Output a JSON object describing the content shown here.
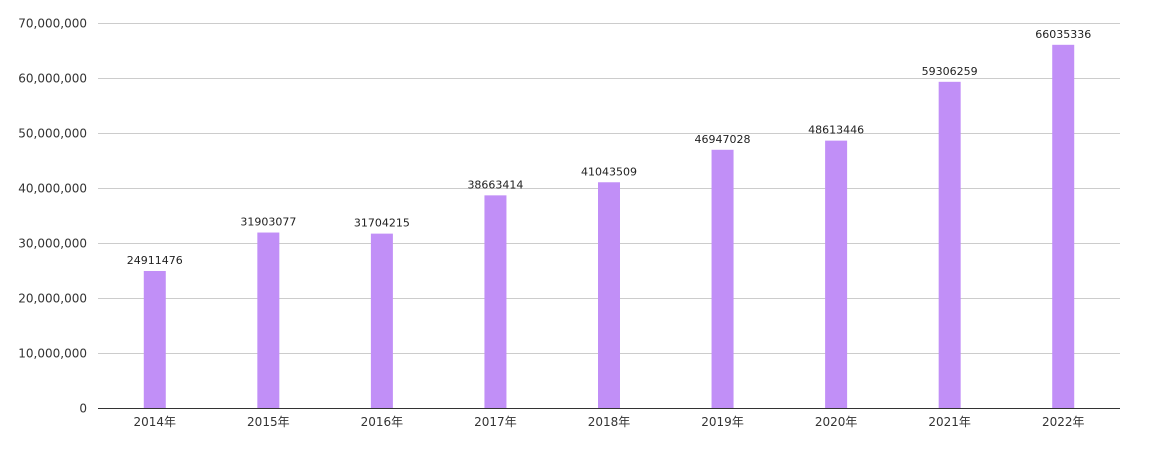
{
  "chart_data": {
    "type": "bar",
    "title": "",
    "xlabel": "",
    "ylabel": "",
    "categories": [
      "2014年",
      "2015年",
      "2016年",
      "2017年",
      "2018年",
      "2019年",
      "2020年",
      "2021年",
      "2022年"
    ],
    "values": [
      24911476,
      31903077,
      31704215,
      38663414,
      41043509,
      46947028,
      48613446,
      59306259,
      66035336
    ],
    "data_labels": [
      "24911476",
      "31903077",
      "31704215",
      "38663414",
      "41043509",
      "46947028",
      "48613446",
      "59306259",
      "66035336"
    ],
    "ylim": [
      0,
      70000000
    ],
    "yticks": [
      0,
      10000000,
      20000000,
      30000000,
      40000000,
      50000000,
      60000000,
      70000000
    ],
    "ytick_labels": [
      "0",
      "10,000,000",
      "20,000,000",
      "30,000,000",
      "40,000,000",
      "50,000,000",
      "60,000,000",
      "70,000,000"
    ],
    "grid": true,
    "legend": "none",
    "bar_color": "#c18ff7"
  }
}
